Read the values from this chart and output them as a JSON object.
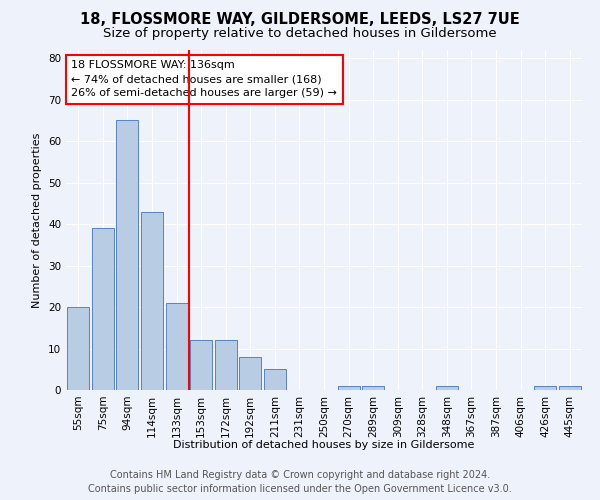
{
  "title": "18, FLOSSMORE WAY, GILDERSOME, LEEDS, LS27 7UE",
  "subtitle": "Size of property relative to detached houses in Gildersome",
  "xlabel": "Distribution of detached houses by size in Gildersome",
  "ylabel": "Number of detached properties",
  "categories": [
    "55sqm",
    "75sqm",
    "94sqm",
    "114sqm",
    "133sqm",
    "153sqm",
    "172sqm",
    "192sqm",
    "211sqm",
    "231sqm",
    "250sqm",
    "270sqm",
    "289sqm",
    "309sqm",
    "328sqm",
    "348sqm",
    "367sqm",
    "387sqm",
    "406sqm",
    "426sqm",
    "445sqm"
  ],
  "values": [
    20,
    39,
    65,
    43,
    21,
    12,
    12,
    8,
    5,
    0,
    0,
    1,
    1,
    0,
    0,
    1,
    0,
    0,
    0,
    1,
    1
  ],
  "bar_color": "#b8cce4",
  "bar_edge_color": "#4472c4",
  "property_line_x": 4.5,
  "annotation_text_line1": "18 FLOSSMORE WAY: 136sqm",
  "annotation_text_line2": "← 74% of detached houses are smaller (168)",
  "annotation_text_line3": "26% of semi-detached houses are larger (59) →",
  "annotation_box_color": "#ff0000",
  "vline_color": "#ff0000",
  "ylim": [
    0,
    82
  ],
  "yticks": [
    0,
    10,
    20,
    30,
    40,
    50,
    60,
    70,
    80
  ],
  "footer_line1": "Contains HM Land Registry data © Crown copyright and database right 2024.",
  "footer_line2": "Contains public sector information licensed under the Open Government Licence v3.0.",
  "bg_color": "#eef2fa",
  "grid_color": "#ffffff",
  "title_fontsize": 10.5,
  "subtitle_fontsize": 9.5,
  "axis_label_fontsize": 8,
  "tick_fontsize": 7.5,
  "footer_fontsize": 7,
  "annotation_fontsize": 8
}
